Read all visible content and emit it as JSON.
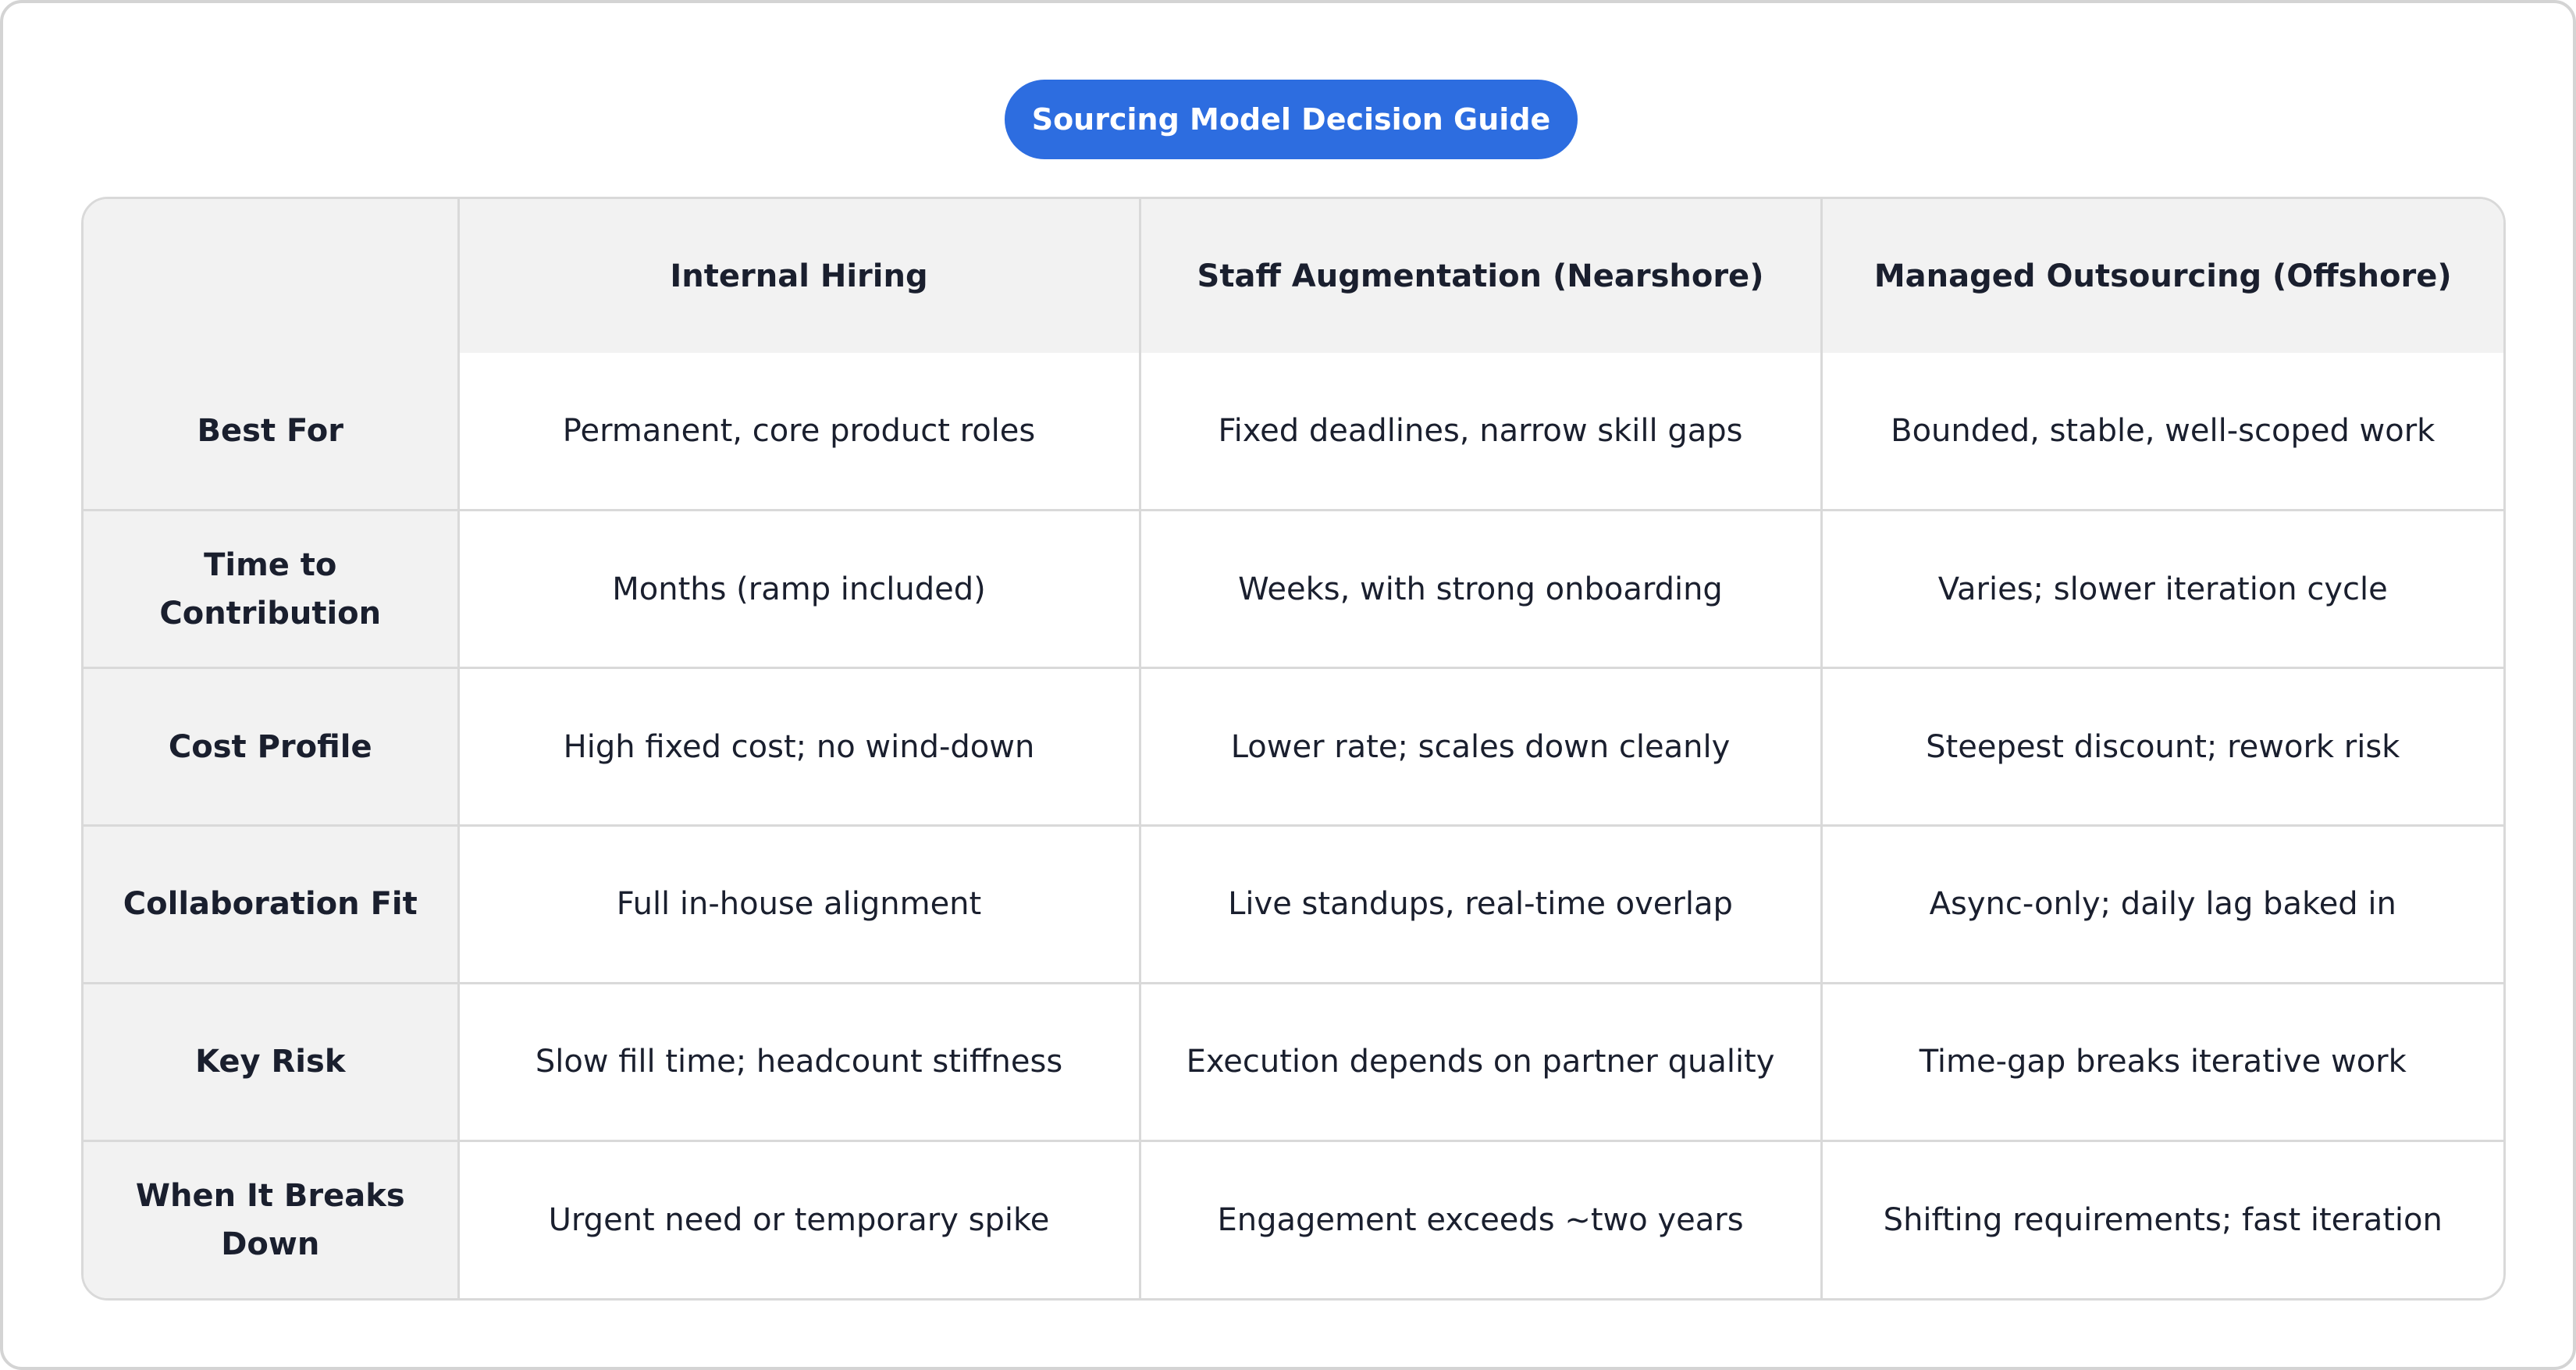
{
  "title": "Sourcing Model Decision Guide",
  "table": {
    "corner": "",
    "columns": [
      "Internal Hiring",
      "Staff Augmentation (Nearshore)",
      "Managed Outsourcing (Offshore)"
    ],
    "rows": [
      {
        "label": "Best For",
        "cells": [
          "Permanent, core product roles",
          "Fixed deadlines, narrow skill gaps",
          "Bounded, stable, well-scoped work"
        ]
      },
      {
        "label": "Time to Contribution",
        "cells": [
          "Months (ramp included)",
          "Weeks, with strong onboarding",
          "Varies; slower iteration cycle"
        ]
      },
      {
        "label": "Cost Profile",
        "cells": [
          "High fixed cost; no wind-down",
          "Lower rate; scales down cleanly",
          "Steepest discount; rework risk"
        ]
      },
      {
        "label": "Collaboration Fit",
        "cells": [
          "Full in-house alignment",
          "Live standups, real-time overlap",
          "Async-only; daily lag baked in"
        ]
      },
      {
        "label": "Key Risk",
        "cells": [
          "Slow fill time; headcount stiffness",
          "Execution depends on partner quality",
          "Time-gap breaks iterative work"
        ]
      },
      {
        "label": "When It Breaks Down",
        "cells": [
          "Urgent need or temporary spike",
          "Engagement exceeds ~two years",
          "Shifting requirements; fast iteration"
        ]
      }
    ]
  },
  "colors": {
    "accent": "#2d6de0",
    "header_bg": "#f2f2f2",
    "border": "#d9d9d9",
    "text": "#1a1f2e"
  }
}
